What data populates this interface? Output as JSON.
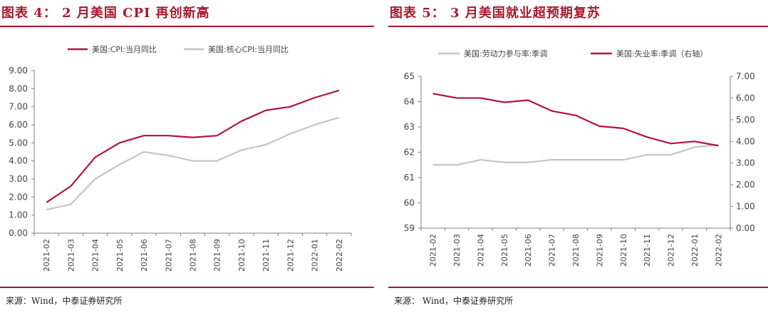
{
  "left": {
    "title": "图表 4：  2 月美国 CPI 再创新高",
    "source": "来源：Wind，中泰证券研究所",
    "chart_data": {
      "type": "line",
      "categories": [
        "2021-02",
        "2021-03",
        "2021-04",
        "2021-05",
        "2021-06",
        "2021-07",
        "2021-08",
        "2021-09",
        "2021-10",
        "2021-11",
        "2021-12",
        "2022-01",
        "2022-02"
      ],
      "series": [
        {
          "name": "美国:CPI:当月同比",
          "color": "#b5123b",
          "values": [
            1.7,
            2.6,
            4.2,
            5.0,
            5.4,
            5.4,
            5.3,
            5.4,
            6.2,
            6.8,
            7.0,
            7.5,
            7.9
          ]
        },
        {
          "name": "美国:核心CPI:当月同比",
          "color": "#c4c4c4",
          "values": [
            1.3,
            1.6,
            3.0,
            3.8,
            4.5,
            4.3,
            4.0,
            4.0,
            4.6,
            4.9,
            5.5,
            6.0,
            6.4
          ]
        }
      ],
      "ylim": [
        0,
        9
      ],
      "yticks": [
        "0.00",
        "1.00",
        "2.00",
        "3.00",
        "4.00",
        "5.00",
        "6.00",
        "7.00",
        "8.00",
        "9.00"
      ],
      "legend": "top"
    }
  },
  "right": {
    "title": "图表 5：  3 月美国就业超预期复苏",
    "source": "来源：  Wind，中泰证券研究所",
    "chart_data": {
      "type": "line",
      "categories": [
        "2021-02",
        "2021-03",
        "2021-04",
        "2021-05",
        "2021-06",
        "2021-07",
        "2021-08",
        "2021-09",
        "2021-10",
        "2021-11",
        "2021-12",
        "2022-01",
        "2022-02"
      ],
      "series": [
        {
          "name": "美国:劳动力参与率:季调",
          "color": "#c4c4c4",
          "axis": "left",
          "values": [
            61.5,
            61.5,
            61.7,
            61.6,
            61.6,
            61.7,
            61.7,
            61.7,
            61.7,
            61.9,
            61.9,
            62.2,
            62.3
          ]
        },
        {
          "name": "美国:失业率:季调（右轴）",
          "color": "#b5123b",
          "axis": "right",
          "values": [
            6.2,
            6.0,
            6.0,
            5.8,
            5.9,
            5.4,
            5.2,
            4.7,
            4.6,
            4.2,
            3.9,
            4.0,
            3.8
          ]
        }
      ],
      "ylim_left": [
        59,
        65
      ],
      "yticks_left": [
        "59",
        "60",
        "61",
        "62",
        "63",
        "64",
        "65"
      ],
      "ylim_right": [
        0,
        7
      ],
      "yticks_right": [
        "0.00",
        "1.00",
        "2.00",
        "3.00",
        "4.00",
        "5.00",
        "6.00",
        "7.00"
      ],
      "legend": "top"
    }
  }
}
